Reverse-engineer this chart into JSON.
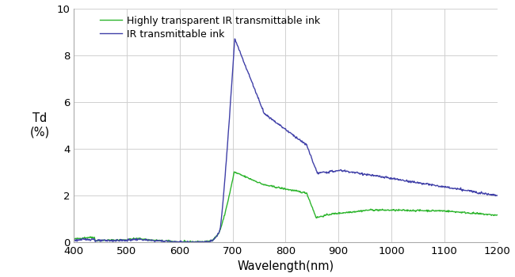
{
  "xlabel": "Wavelength(nm)",
  "ylabel": "Td\n(%)",
  "xlim": [
    400,
    1200
  ],
  "ylim": [
    0,
    10
  ],
  "xticks": [
    400,
    500,
    600,
    700,
    800,
    900,
    1000,
    1100,
    1200
  ],
  "yticks": [
    0,
    2,
    4,
    6,
    8,
    10
  ],
  "legend1": "Highly transparent IR transmittable ink",
  "legend2": "IR transmittable ink",
  "color_green": "#2db52d",
  "color_blue": "#4040a8",
  "background": "#ffffff",
  "grid_color": "#d0d0d0"
}
